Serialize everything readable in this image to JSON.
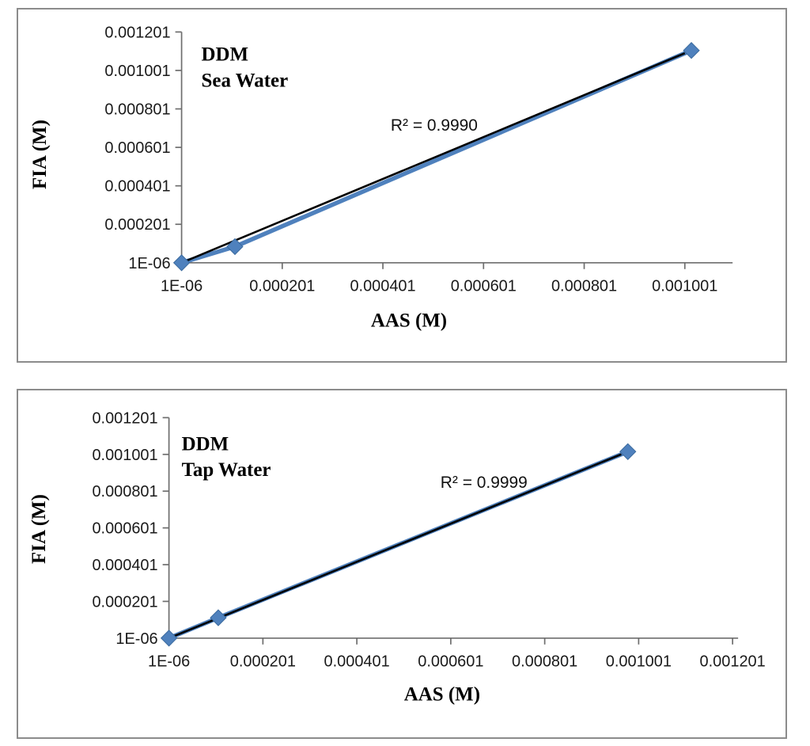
{
  "colors": {
    "series_blue": "#4F81BD",
    "marker_edge": "#3A6A9E",
    "trendline": "#000000",
    "axis": "#6e6e6e",
    "panel_border": "#8c8c8c",
    "text": "#000000"
  },
  "chart_data": [
    {
      "type": "scatter",
      "title_lines": [
        "DDM",
        "Sea Water"
      ],
      "xlabel": "AAS (M)",
      "ylabel": "FIA (M)",
      "annotation": "R² = 0.9990",
      "tick_step": 0.0002,
      "x_ticks": {
        "labels": [
          "1E-06",
          "0.000201",
          "0.000401",
          "0.000601",
          "0.000801",
          "0.001001"
        ],
        "values": [
          1e-06,
          0.000201,
          0.000401,
          0.000601,
          0.000801,
          0.001001
        ]
      },
      "y_ticks": {
        "labels": [
          "1E-06",
          "0.000201",
          "0.000401",
          "0.000601",
          "0.000801",
          "0.001001",
          "0.001201"
        ],
        "values": [
          1e-06,
          0.000201,
          0.000401,
          0.000601,
          0.000801,
          0.001001,
          0.001201
        ]
      },
      "xlim": [
        1e-06,
        0.0011
      ],
      "ylim": [
        1e-06,
        0.001201
      ],
      "grid": false,
      "legend": "none",
      "points": {
        "x": [
          1e-06,
          0.000107,
          0.001014
        ],
        "y": [
          1e-06,
          8.5e-05,
          0.001105
        ]
      },
      "trendline": true
    },
    {
      "type": "scatter",
      "title_lines": [
        "DDM",
        "Tap Water"
      ],
      "xlabel": "AAS (M)",
      "ylabel": "FIA (M)",
      "annotation": "R² = 0.9999",
      "tick_step": 0.0002,
      "x_ticks": {
        "labels": [
          "1E-06",
          "0.000201",
          "0.000401",
          "0.000601",
          "0.000801",
          "0.001001",
          "0.001201"
        ],
        "values": [
          1e-06,
          0.000201,
          0.000401,
          0.000601,
          0.000801,
          0.001001,
          0.001201
        ]
      },
      "y_ticks": {
        "labels": [
          "1E-06",
          "0.000201",
          "0.000401",
          "0.000601",
          "0.000801",
          "0.001001",
          "0.001201"
        ],
        "values": [
          1e-06,
          0.000201,
          0.000401,
          0.000601,
          0.000801,
          0.001001,
          0.001201
        ]
      },
      "xlim": [
        1e-06,
        0.001211
      ],
      "ylim": [
        1e-06,
        0.001201
      ],
      "grid": false,
      "legend": "none",
      "points": {
        "x": [
          1e-06,
          0.000106,
          0.000978
        ],
        "y": [
          1e-06,
          0.000112,
          0.001016
        ]
      },
      "trendline": true
    }
  ]
}
